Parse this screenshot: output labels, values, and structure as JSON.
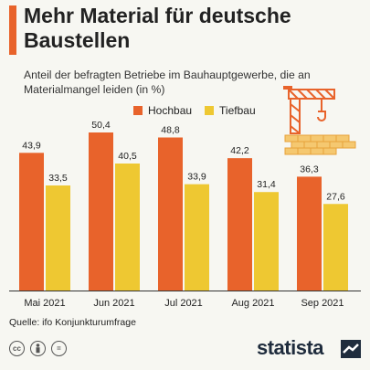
{
  "title": "Mehr Material für deutsche Baustellen",
  "subtitle": "Anteil der befragten Betriebe im Bauhauptgewerbe, die an Materialmangel leiden (in %)",
  "legend": {
    "hochbau": "Hochbau",
    "tiefbau": "Tiefbau"
  },
  "source": "Quelle: ifo Konjunkturumfrage",
  "brand": "statista",
  "colors": {
    "hochbau": "#e8632b",
    "tiefbau": "#eec832",
    "accent": "#e8632b"
  },
  "footer_icons": [
    "cc-icon",
    "person-icon",
    "equals-icon"
  ],
  "chart_data": {
    "type": "bar",
    "categories": [
      "Mai 2021",
      "Jun 2021",
      "Jul 2021",
      "Aug 2021",
      "Sep 2021"
    ],
    "series": [
      {
        "name": "Hochbau",
        "values": [
          43.9,
          50.4,
          48.8,
          42.2,
          36.3
        ],
        "labels": [
          "43,9",
          "50,4",
          "48,8",
          "42,2",
          "36,3"
        ]
      },
      {
        "name": "Tiefbau",
        "values": [
          33.5,
          40.5,
          33.9,
          31.4,
          27.6
        ],
        "labels": [
          "33,5",
          "40,5",
          "33,9",
          "31,4",
          "27,6"
        ]
      }
    ],
    "ylim": [
      0,
      55
    ],
    "grid": false,
    "legend_position": "top"
  }
}
